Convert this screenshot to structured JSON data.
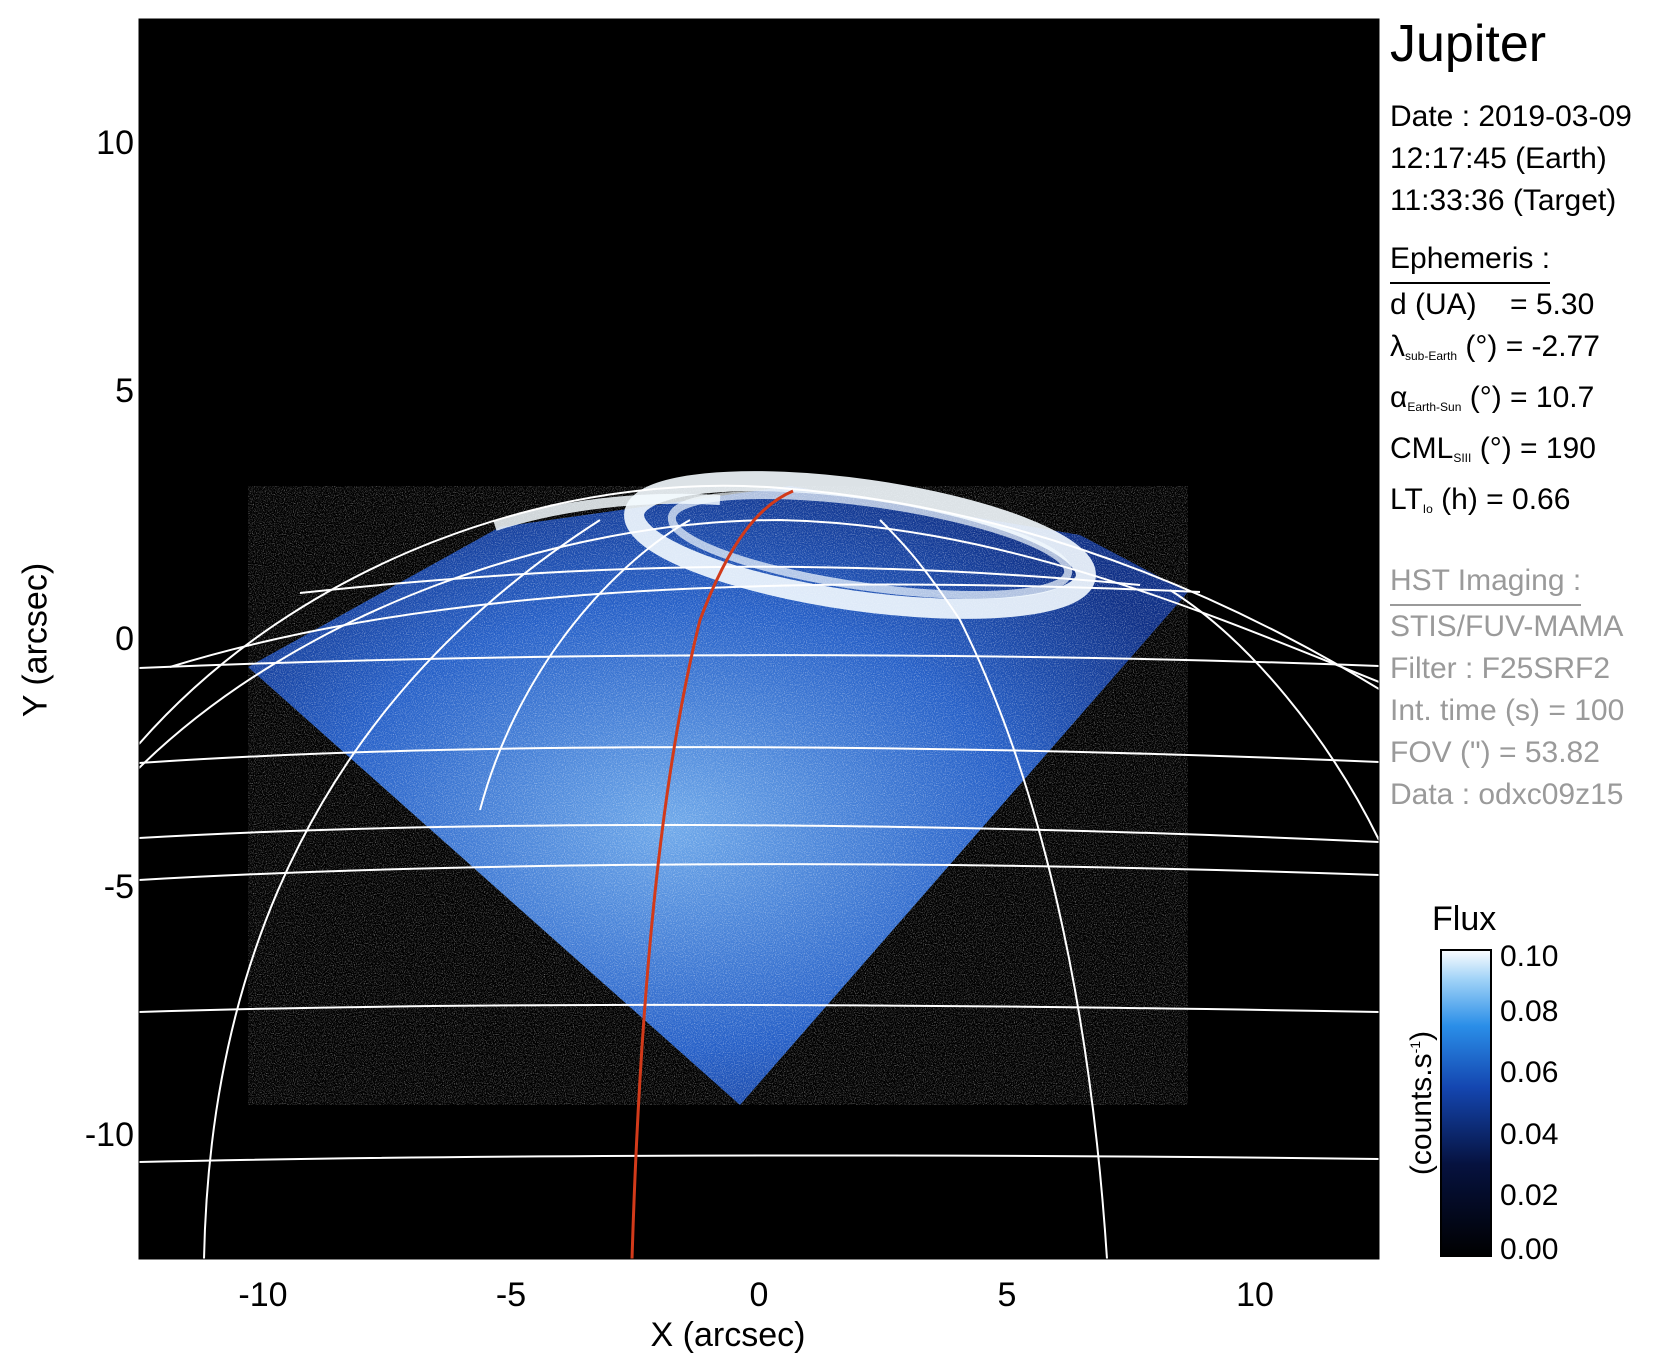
{
  "image": {
    "title": "Jupiter",
    "date_label": "Date : 2019-03-09",
    "time_earth": "12:17:45 (Earth)",
    "time_target": "11:33:36 (Target)"
  },
  "ephemeris": {
    "header": "Ephemeris :",
    "distance": "d (UA)    = 5.30",
    "lambda_symbol": "λ",
    "lambda_sub": "sub-Earth",
    "lambda_rest": "(°) = -2.77",
    "alpha_symbol": "α",
    "alpha_sub": "Earth-Sun",
    "alpha_rest": "(°) = 10.7",
    "cml_symbol": "CML",
    "cml_sub": "SIII",
    "cml_rest": "(°) = 190",
    "lt_symbol": "LT",
    "lt_sub": "Io",
    "lt_rest": "(h) = 0.66"
  },
  "hst": {
    "header": "HST Imaging :",
    "instrument": "STIS/FUV-MAMA",
    "filter": "Filter : F25SRF2",
    "int_time": "Int. time (s) = 100",
    "fov": "FOV (\") = 53.82",
    "data": "Data : odxc09z15"
  },
  "axes": {
    "xlabel": "X (arcsec)",
    "ylabel": "Y (arcsec)",
    "xticks": [
      "-10",
      "-5",
      "0",
      "5",
      "10"
    ],
    "yticks": [
      "10",
      "5",
      "0",
      "-5",
      "-10"
    ],
    "xlim": [
      -12.5,
      12.5
    ],
    "ylim": [
      -12.5,
      12.5
    ]
  },
  "colorbar": {
    "title": "Flux",
    "unit_main": "(counts.s",
    "unit_sup": "-1",
    "unit_close": ")",
    "ticks": [
      "0.10",
      "0.08",
      "0.06",
      "0.04",
      "0.02",
      "0.00"
    ],
    "range": [
      0.0,
      0.1
    ]
  },
  "colors": {
    "background": "#000000",
    "emission_dark": "#0a2a7a",
    "emission_mid": "#1a7fe0",
    "emission_bright": "#e8f4ff",
    "grid": "#ffffff",
    "cml_line": "#d23a1a"
  }
}
